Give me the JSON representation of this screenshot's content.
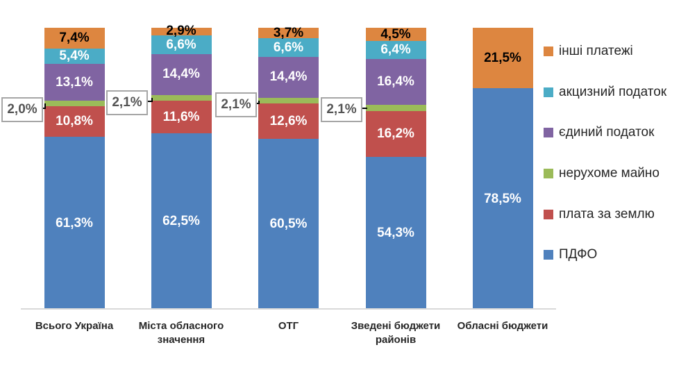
{
  "chart_data": {
    "type": "bar",
    "variant": "stacked-100-percent",
    "grid": false,
    "legend_position": "right",
    "ylim": [
      0,
      100
    ],
    "categories": [
      "Всього Україна",
      "Міста обласного значення",
      "ОТГ",
      "Зведені бюджети районів",
      "Обласні бюджети"
    ],
    "series": [
      {
        "name": "ПДФО",
        "color": "#4f81bd",
        "label_color": "#ffffff",
        "values": [
          61.3,
          62.5,
          60.5,
          54.3,
          78.5
        ],
        "labels": [
          "61,3%",
          "62,5%",
          "60,5%",
          "54,3%",
          "78,5%"
        ]
      },
      {
        "name": "плата за землю",
        "color": "#c0504d",
        "label_color": "#ffffff",
        "values": [
          10.8,
          11.6,
          12.6,
          16.2,
          0
        ],
        "labels": [
          "10,8%",
          "11,6%",
          "12,6%",
          "16,2%",
          ""
        ]
      },
      {
        "name": "нерухоме майно",
        "color": "#9bbb59",
        "label_color": "#ffffff",
        "values": [
          2.0,
          2.1,
          2.1,
          2.1,
          0
        ],
        "labels": [
          "",
          "",
          "",
          "",
          ""
        ]
      },
      {
        "name": "єдиний податок",
        "color": "#8064a2",
        "label_color": "#ffffff",
        "values": [
          13.1,
          14.4,
          14.4,
          16.4,
          0
        ],
        "labels": [
          "13,1%",
          "14,4%",
          "14,4%",
          "16,4%",
          ""
        ]
      },
      {
        "name": "акцизний податок",
        "color": "#4bacc6",
        "label_color": "#ffffff",
        "values": [
          5.4,
          6.6,
          6.6,
          6.4,
          0
        ],
        "labels": [
          "5,4%",
          "6,6%",
          "6,6%",
          "6,4%",
          ""
        ]
      },
      {
        "name": "інші платежі",
        "color": "#dd8640",
        "label_color": "#000000",
        "values": [
          7.4,
          2.9,
          3.7,
          4.5,
          21.5
        ],
        "labels": [
          "7,4%",
          "2,9%",
          "3,7%",
          "4,5%",
          "21,5%"
        ]
      }
    ],
    "callouts": [
      {
        "text": "2,0%",
        "category_index": 0,
        "series": "нерухоме майно"
      },
      {
        "text": "2,1%",
        "category_index": 1,
        "series": "нерухоме майно"
      },
      {
        "text": "2,1%",
        "category_index": 2,
        "series": "нерухоме майно"
      },
      {
        "text": "2,1%",
        "category_index": 3,
        "series": "нерухоме майно"
      }
    ],
    "legend": [
      "інші платежі",
      "акцизний податок",
      "єдиний податок",
      "нерухоме майно",
      "плата за землю",
      "ПДФО"
    ],
    "colors": {
      "axis_line": "#d9d9d9",
      "callout_border": "#a6a6a6",
      "callout_text": "#555555",
      "connector": "#000000",
      "text": "#262626",
      "background": "#ffffff"
    }
  }
}
